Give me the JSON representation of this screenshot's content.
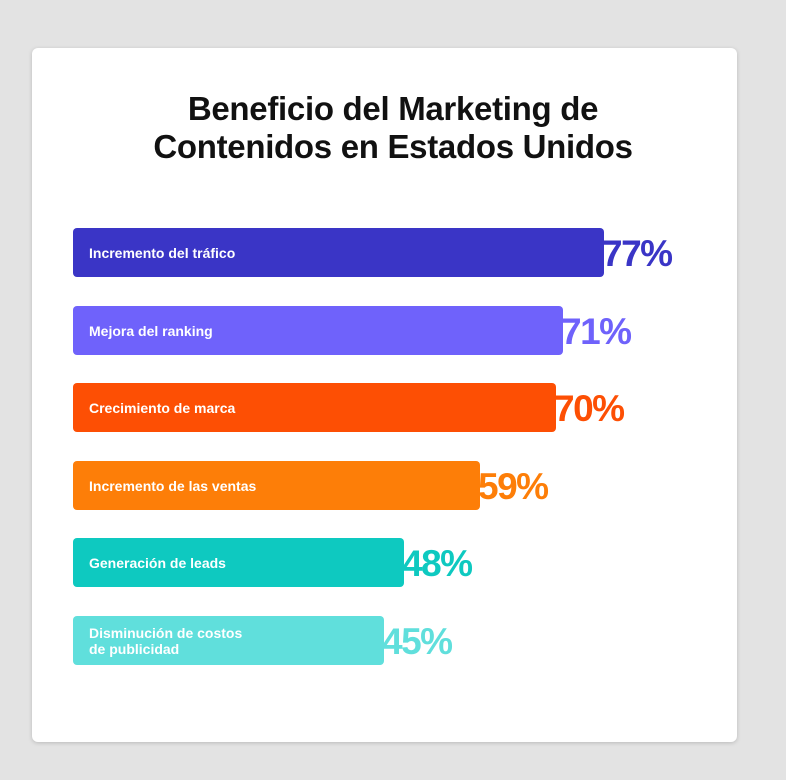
{
  "title": {
    "line1": "Beneficio del Marketing de",
    "line2": "Contenidos en Estados Unidos"
  },
  "chart_data": {
    "type": "bar",
    "orientation": "horizontal",
    "title": "Beneficio del Marketing de Contenidos en Estados Unidos",
    "categories": [
      "Incremento del tráfico",
      "Mejora del ranking",
      "Crecimiento de marca",
      "Incremento de las ventas",
      "Generación de leads",
      "Disminución de costos de publicidad"
    ],
    "values": [
      77,
      71,
      70,
      59,
      48,
      45
    ],
    "value_labels": [
      "77%",
      "71%",
      "70%",
      "59%",
      "48%",
      "45%"
    ],
    "bar_labels": [
      "Incremento del tráfico",
      "Mejora del ranking",
      "Crecimiento de marca",
      "Incremento de las ventas",
      "Generación de leads",
      "Disminución de costos\nde publicidad"
    ],
    "colors": [
      "#3a35c6",
      "#6f62fb",
      "#fd4f04",
      "#fd7e08",
      "#0ec9c0",
      "#60dfdc"
    ],
    "unit": "%",
    "grid": false,
    "legend": "none"
  }
}
